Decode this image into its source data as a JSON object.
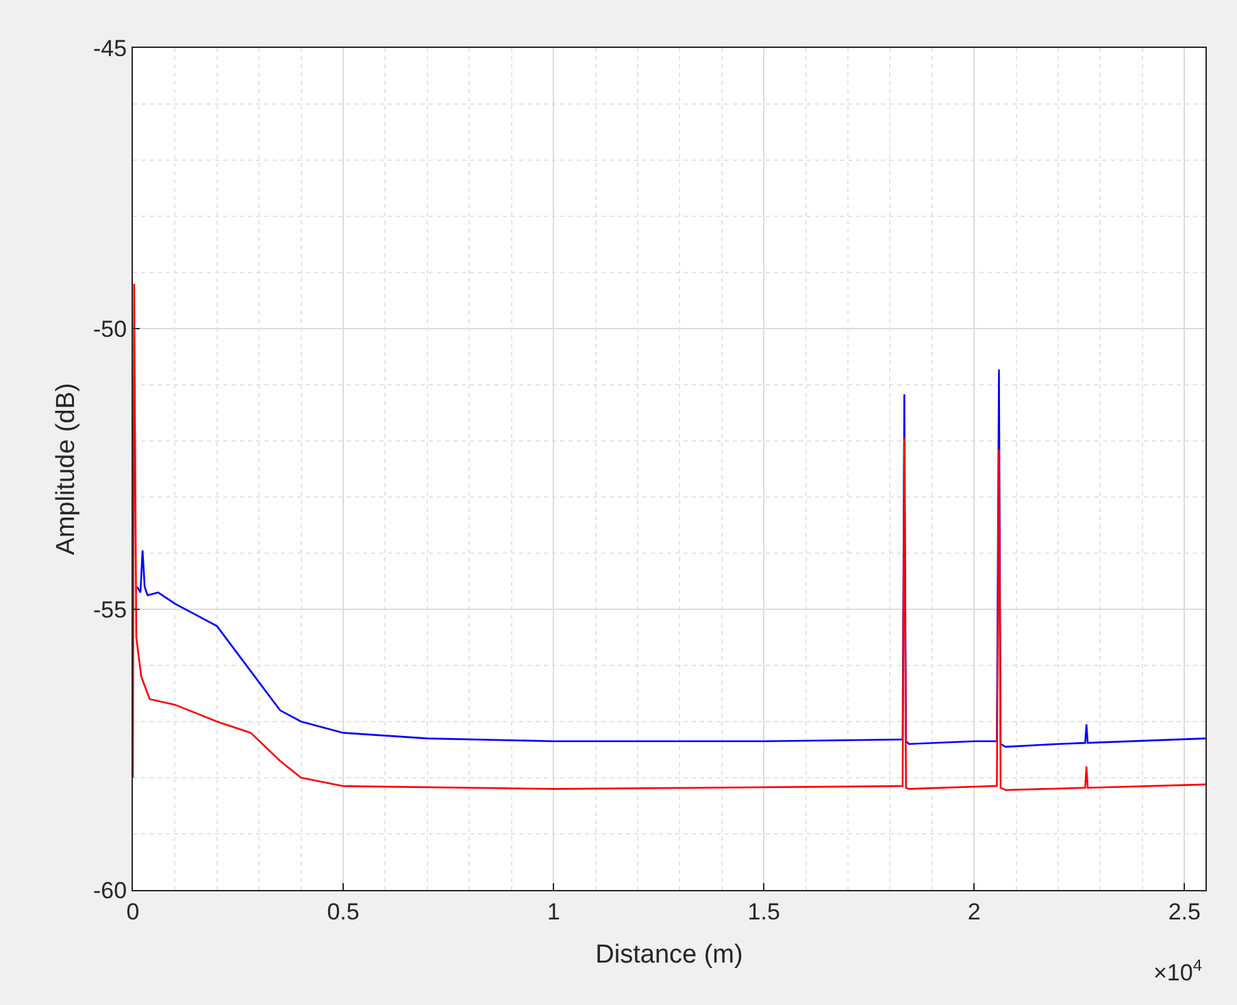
{
  "chart_data": {
    "type": "line",
    "xlabel": "Distance (m)",
    "ylabel": "Amplitude (dB)",
    "xlim": [
      0,
      2.55
    ],
    "ylim": [
      -60,
      -45
    ],
    "xticks": [
      0,
      0.5,
      1,
      1.5,
      2,
      2.5
    ],
    "yticks": [
      -60,
      -55,
      -50,
      -45
    ],
    "grid": true,
    "marker": "none",
    "line_style": "solid",
    "annotations": [
      "×10$^{4}$"
    ],
    "series": [
      {
        "color": "#0000ff",
        "x": [
          0.01,
          0.018,
          0.023,
          0.028,
          0.035,
          0.06,
          0.1,
          0.15,
          0.2,
          0.25,
          0.3,
          0.35,
          0.4,
          0.5,
          0.7,
          1.0,
          1.5,
          1.82,
          1.83,
          1.834,
          1.838,
          1.845,
          2.0,
          2.054,
          2.059,
          2.063,
          2.075,
          2.2,
          2.264,
          2.267,
          2.27,
          2.55
        ],
        "values": [
          -54.6,
          -54.7,
          -53.95,
          -54.6,
          -54.75,
          -54.7,
          -54.9,
          -55.1,
          -55.3,
          -55.8,
          -56.3,
          -56.8,
          -57.0,
          -57.2,
          -57.3,
          -57.35,
          -57.35,
          -57.32,
          -57.32,
          -51.17,
          -57.35,
          -57.4,
          -57.35,
          -57.35,
          -50.73,
          -57.4,
          -57.45,
          -57.4,
          -57.38,
          -57.05,
          -57.38,
          -57.3
        ]
      },
      {
        "color": "#ff0000",
        "x": [
          0.0,
          0.003,
          0.008,
          0.02,
          0.04,
          0.1,
          0.2,
          0.28,
          0.35,
          0.4,
          0.5,
          1.0,
          1.82,
          1.83,
          1.834,
          1.838,
          1.845,
          2.04,
          2.054,
          2.059,
          2.063,
          2.075,
          2.26,
          2.264,
          2.267,
          2.27,
          2.55
        ],
        "values": [
          -58.0,
          -49.2,
          -55.5,
          -56.2,
          -56.6,
          -56.7,
          -57.0,
          -57.2,
          -57.7,
          -58.0,
          -58.15,
          -58.2,
          -58.15,
          -58.15,
          -51.95,
          -58.18,
          -58.2,
          -58.15,
          -58.15,
          -52.15,
          -58.18,
          -58.22,
          -58.18,
          -58.18,
          -57.8,
          -58.18,
          -58.12
        ]
      }
    ]
  }
}
